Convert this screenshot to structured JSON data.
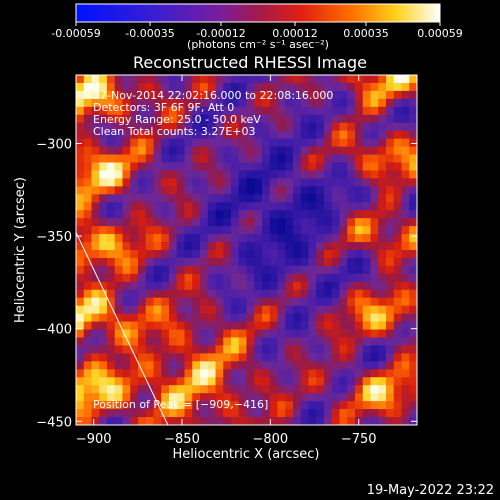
{
  "colorbar": {
    "tick_labels": [
      "-0.00059",
      "-0.00035",
      "-0.00012",
      "0.00012",
      "0.00035",
      "0.00059"
    ],
    "tick_values": [
      -0.00059,
      -0.00035,
      -0.00012,
      0.00012,
      0.00035,
      0.00059
    ],
    "range": [
      -0.00059,
      0.00059
    ],
    "unit_label": "(photons cm⁻² s⁻¹ asec⁻²)",
    "colormap": "blue-purple-red-yellow-white"
  },
  "chart_data": {
    "type": "heatmap",
    "title": "Reconstructed RHESSI Image",
    "xlabel": "Heliocentric X (arcsec)",
    "ylabel": "Heliocentric Y (arcsec)",
    "xlim": [
      -910,
      -717
    ],
    "ylim": [
      -452,
      -263
    ],
    "x_ticks": [
      -900,
      -850,
      -800,
      -750
    ],
    "y_ticks": [
      -300,
      -350,
      -400,
      -450
    ],
    "x_tick_labels": [
      "−900",
      "−850",
      "−800",
      "−750"
    ],
    "y_tick_labels": [
      "−300",
      "−350",
      "−400",
      "−450"
    ],
    "annotations": [
      "27-Nov-2014 22:02:16.000 to 22:08:16.000",
      "Detectors: 3F 6F 9F, Att 0",
      "Energy Range: 25.0 - 50.0 keV",
      "Clean    Total counts: 3.27E+03"
    ],
    "peak_label": "Position of Peak = [−909,−416]",
    "peak_position": [
      -909,
      -416
    ],
    "limb_line": [
      [
        -910,
        -348
      ],
      [
        -858,
        -452
      ]
    ],
    "grid": false
  },
  "footer": {
    "timestamp": "19-May-2022 23:22"
  }
}
